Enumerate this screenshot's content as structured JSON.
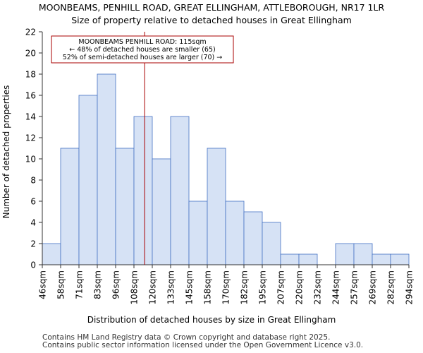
{
  "chart_data": {
    "type": "bar",
    "title": "MOONBEAMS, PENHILL ROAD, GREAT ELLINGHAM, ATTLEBOROUGH, NR17 1LR",
    "subtitle": "Size of property relative to detached houses in Great Ellingham",
    "xlabel": "Distribution of detached houses by size in Great Ellingham",
    "ylabel": "Number of detached properties",
    "bin_edges": [
      46,
      58,
      71,
      83,
      96,
      108,
      120,
      133,
      145,
      158,
      170,
      182,
      195,
      207,
      220,
      232,
      244,
      257,
      269,
      282,
      294
    ],
    "tick_labels": [
      "46sqm",
      "58sqm",
      "71sqm",
      "83sqm",
      "96sqm",
      "108sqm",
      "120sqm",
      "133sqm",
      "145sqm",
      "158sqm",
      "170sqm",
      "182sqm",
      "195sqm",
      "207sqm",
      "220sqm",
      "232sqm",
      "244sqm",
      "257sqm",
      "269sqm",
      "282sqm",
      "294sqm"
    ],
    "values": [
      2,
      11,
      16,
      18,
      11,
      14,
      10,
      14,
      6,
      11,
      6,
      5,
      4,
      1,
      1,
      0,
      2,
      2,
      1,
      1
    ],
    "ylim": [
      0,
      22
    ],
    "yticks": [
      0,
      2,
      4,
      6,
      8,
      10,
      12,
      14,
      16,
      18,
      20,
      22
    ],
    "marker": {
      "value": 115,
      "label_lines": [
        "MOONBEAMS PENHILL ROAD: 115sqm",
        "← 48% of detached houses are smaller (65)",
        "52% of semi-detached houses are larger (70) →"
      ]
    },
    "colors": {
      "bar_fill": "#d6e2f5",
      "bar_stroke": "#4472c4",
      "marker": "#aa0000"
    }
  },
  "footer": {
    "line1": "Contains HM Land Registry data © Crown copyright and database right 2025.",
    "line2": "Contains public sector information licensed under the Open Government Licence v3.0."
  }
}
